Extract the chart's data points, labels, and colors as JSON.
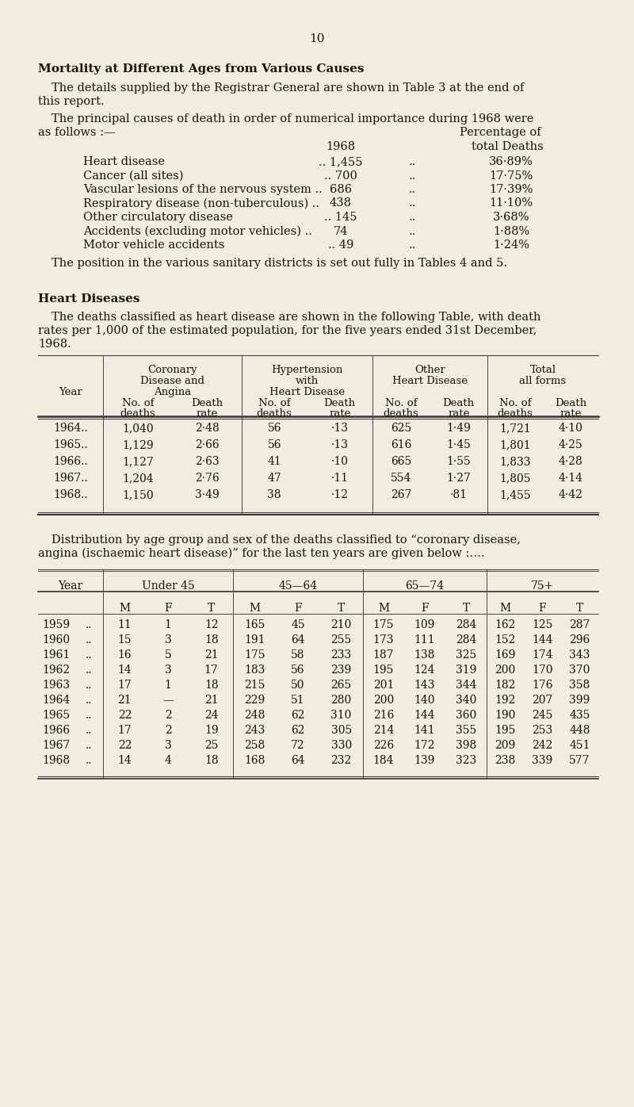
{
  "page_number": "10",
  "bg_color": "#f0ece0",
  "title": "Mortality at Different Ages from Various Causes",
  "causes": [
    [
      "Heart disease",
      ".. 1,455",
      "36·89%"
    ],
    [
      "Cancer (all sites)",
      ".. 700",
      "17·75%"
    ],
    [
      "Vascular lesions of the nervous system ..",
      "686",
      "17·39%"
    ],
    [
      "Respiratory disease (non-tuberculous) ..",
      "438",
      "11·10%"
    ],
    [
      "Other circulatory disease",
      ".. 145",
      "3·68%"
    ],
    [
      "Accidents (excluding motor vehicles) ..",
      "74",
      "1·88%"
    ],
    [
      "Motor vehicle accidents",
      ".. 49",
      "1·24%"
    ]
  ],
  "table1_years": [
    "1964..",
    "1965..",
    "1966..",
    "1967..",
    "1968.."
  ],
  "table1_data": [
    [
      "1,040",
      "2·48",
      "56",
      "·13",
      "625",
      "1·49",
      "1,721",
      "4·10"
    ],
    [
      "1,129",
      "2·66",
      "56",
      "·13",
      "616",
      "1·45",
      "1,801",
      "4·25"
    ],
    [
      "1,127",
      "2·63",
      "41",
      "·10",
      "665",
      "1·55",
      "1,833",
      "4·28"
    ],
    [
      "1,204",
      "2·76",
      "47",
      "·11",
      "554",
      "1·27",
      "1,805",
      "4·14"
    ],
    [
      "1,150",
      "3·49",
      "38",
      "·12",
      "267",
      "·81",
      "1,455",
      "4·42"
    ]
  ],
  "table2_age_groups": [
    "Under 45",
    "45—64",
    "65—74",
    "75+"
  ],
  "table2_years": [
    "1959",
    "1960",
    "1961",
    "1962",
    "1963",
    "1964",
    "1965",
    "1966",
    "1967",
    "1968"
  ],
  "table2_data": [
    [
      11,
      1,
      12,
      165,
      45,
      210,
      175,
      109,
      284,
      162,
      125,
      287
    ],
    [
      15,
      3,
      18,
      191,
      64,
      255,
      173,
      111,
      284,
      152,
      144,
      296
    ],
    [
      16,
      5,
      21,
      175,
      58,
      233,
      187,
      138,
      325,
      169,
      174,
      343
    ],
    [
      14,
      3,
      17,
      183,
      56,
      239,
      195,
      124,
      319,
      200,
      170,
      370
    ],
    [
      17,
      1,
      18,
      215,
      50,
      265,
      201,
      143,
      344,
      182,
      176,
      358
    ],
    [
      21,
      0,
      21,
      229,
      51,
      280,
      200,
      140,
      340,
      192,
      207,
      399
    ],
    [
      22,
      2,
      24,
      248,
      62,
      310,
      216,
      144,
      360,
      190,
      245,
      435
    ],
    [
      17,
      2,
      19,
      243,
      62,
      305,
      214,
      141,
      355,
      195,
      253,
      448
    ],
    [
      22,
      3,
      25,
      258,
      72,
      330,
      226,
      172,
      398,
      209,
      242,
      451
    ],
    [
      14,
      4,
      18,
      168,
      64,
      232,
      184,
      139,
      323,
      238,
      339,
      577
    ]
  ]
}
